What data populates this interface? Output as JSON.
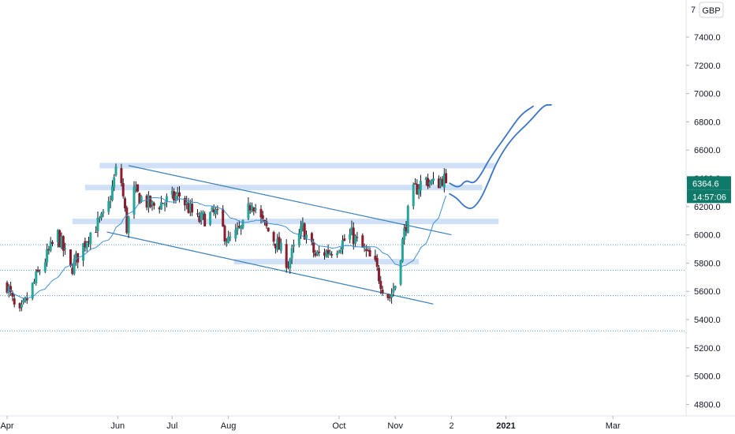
{
  "chart_data": {
    "type": "candlestick",
    "currency": "GBP",
    "price_axis": {
      "ticks": [
        "4800.0",
        "5000.0",
        "5200.0",
        "5400.0",
        "5600.0",
        "5800.0",
        "6000.0",
        "6200.0",
        "6400.0",
        "6600.0",
        "6800.0",
        "7000.0",
        "7200.0",
        "7400.0"
      ],
      "top_partial_label": "7",
      "ylim": [
        4720,
        7640
      ]
    },
    "time_axis": {
      "ticks": [
        {
          "label": "Apr",
          "day": 0
        },
        {
          "label": "Jun",
          "day": 61
        },
        {
          "label": "Jul",
          "day": 91
        },
        {
          "label": "Aug",
          "day": 122
        },
        {
          "label": "Oct",
          "day": 183
        },
        {
          "label": "Nov",
          "day": 214
        },
        {
          "label": "2",
          "day": 245
        },
        {
          "label": "2021",
          "day": 275
        },
        {
          "label": "Mar",
          "day": 334
        }
      ],
      "bold_labels": [
        "2021"
      ]
    },
    "last_price": {
      "value": "6364.6",
      "countdown": "14:57:06",
      "color": "#107a6a"
    },
    "colors": {
      "up": "#26a69a",
      "down": "#8b1c2c",
      "wick": "#131722",
      "ma": "#3d8fd6",
      "trend": "#3c7fb8",
      "zone": "#cfe0f7",
      "projection": "#3a74c8",
      "dotted": "#4fa3d6"
    },
    "candle_seed": {
      "start": 5650,
      "waypoints": [
        {
          "day": 0,
          "close": 5650
        },
        {
          "day": 6,
          "close": 5400
        },
        {
          "day": 18,
          "close": 5750
        },
        {
          "day": 28,
          "close": 6000
        },
        {
          "day": 35,
          "close": 5750
        },
        {
          "day": 45,
          "close": 6000
        },
        {
          "day": 55,
          "close": 6150
        },
        {
          "day": 60,
          "close": 6450
        },
        {
          "day": 62,
          "close": 6480
        },
        {
          "day": 66,
          "close": 6050
        },
        {
          "day": 70,
          "close": 6300
        },
        {
          "day": 80,
          "close": 6200
        },
        {
          "day": 90,
          "close": 6250
        },
        {
          "day": 95,
          "close": 6280
        },
        {
          "day": 105,
          "close": 6100
        },
        {
          "day": 115,
          "close": 6150
        },
        {
          "day": 122,
          "close": 5950
        },
        {
          "day": 130,
          "close": 6050
        },
        {
          "day": 135,
          "close": 6250
        },
        {
          "day": 140,
          "close": 6100
        },
        {
          "day": 148,
          "close": 5950
        },
        {
          "day": 155,
          "close": 5800
        },
        {
          "day": 163,
          "close": 6050
        },
        {
          "day": 170,
          "close": 5850
        },
        {
          "day": 180,
          "close": 5900
        },
        {
          "day": 190,
          "close": 6000
        },
        {
          "day": 196,
          "close": 5900
        },
        {
          "day": 203,
          "close": 5780
        },
        {
          "day": 208,
          "close": 5600
        },
        {
          "day": 211,
          "close": 5560
        },
        {
          "day": 214,
          "close": 5650
        },
        {
          "day": 218,
          "close": 5950
        },
        {
          "day": 221,
          "close": 6150
        },
        {
          "day": 224,
          "close": 6300
        },
        {
          "day": 230,
          "close": 6400
        },
        {
          "day": 236,
          "close": 6350
        },
        {
          "day": 240,
          "close": 6400
        },
        {
          "day": 244,
          "close": 6365
        }
      ]
    },
    "horizontal_zones": [
      {
        "from_day": 51,
        "to_day": 269,
        "price": 6490
      },
      {
        "from_day": 43,
        "to_day": 262,
        "price": 6335
      },
      {
        "from_day": 36,
        "to_day": 271,
        "price": 6095
      },
      {
        "from_day": 125,
        "to_day": 227,
        "price": 5810
      }
    ],
    "dotted_levels": [
      5930,
      5750,
      5570,
      5320
    ],
    "trend_lines": [
      {
        "from": {
          "day": 67,
          "price": 6490
        },
        "to": {
          "day": 245,
          "price": 6000
        }
      },
      {
        "from": {
          "day": 55,
          "price": 6020
        },
        "to": {
          "day": 235,
          "price": 5510
        }
      }
    ],
    "projection_paths": [
      [
        [
          244,
          6365
        ],
        [
          249,
          6330
        ],
        [
          253,
          6390
        ],
        [
          257,
          6360
        ],
        [
          261,
          6420
        ],
        [
          266,
          6540
        ],
        [
          275,
          6700
        ],
        [
          283,
          6850
        ],
        [
          290,
          6910
        ]
      ],
      [
        [
          244,
          6290
        ],
        [
          248,
          6260
        ],
        [
          252,
          6200
        ],
        [
          256,
          6180
        ],
        [
          260,
          6230
        ],
        [
          264,
          6330
        ],
        [
          270,
          6520
        ],
        [
          278,
          6680
        ],
        [
          288,
          6800
        ],
        [
          296,
          6920
        ],
        [
          300,
          6920
        ]
      ]
    ]
  }
}
